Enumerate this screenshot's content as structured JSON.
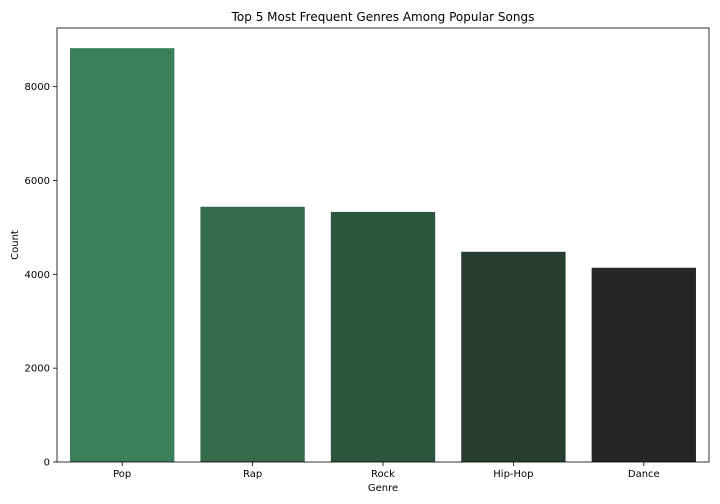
{
  "chart_data": {
    "type": "bar",
    "title": "Top 5 Most Frequent Genres Among Popular Songs",
    "xlabel": "Genre",
    "ylabel": "Count",
    "categories": [
      "Pop",
      "Rap",
      "Rock",
      "Hip-Hop",
      "Dance"
    ],
    "values": [
      8820,
      5440,
      5330,
      4480,
      4140
    ],
    "ylim": [
      0,
      9250
    ],
    "yticks": [
      0,
      2000,
      4000,
      6000,
      8000
    ],
    "ytick_labels": [
      "0",
      "2000",
      "4000",
      "6000",
      "8000"
    ],
    "colors": [
      "#3a7f5a",
      "#356a4d",
      "#2e5540",
      "#283d31",
      "#252726"
    ],
    "grid": false,
    "legend": "none"
  }
}
